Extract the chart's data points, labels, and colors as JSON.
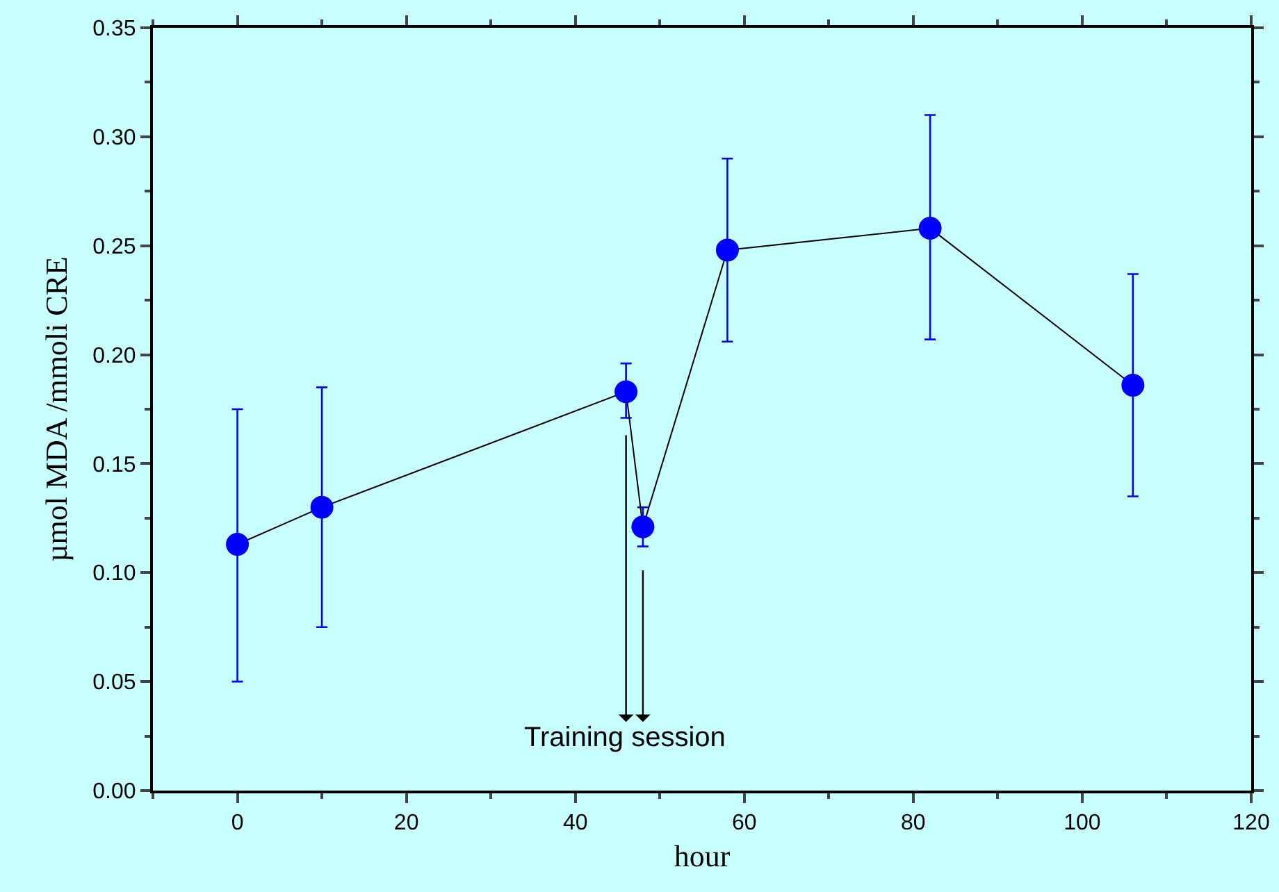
{
  "chart_data": {
    "type": "line",
    "xlabel": "hour",
    "ylabel": "µmol MDA /mmoli CRE",
    "x": [
      0,
      10,
      46,
      48,
      58,
      82,
      106
    ],
    "series": [
      {
        "color": "#0000ff",
        "values": [
          0.113,
          0.13,
          0.183,
          0.121,
          0.248,
          0.258,
          0.186
        ],
        "errors": [
          [
            0.05,
            0.175
          ],
          [
            0.075,
            0.185
          ],
          [
            0.171,
            0.196
          ],
          [
            0.112,
            0.13
          ],
          [
            0.206,
            0.29
          ],
          [
            0.207,
            0.31
          ],
          [
            0.135,
            0.237
          ]
        ]
      }
    ],
    "xlim": [
      -10,
      120
    ],
    "xticks": [
      0,
      20,
      40,
      60,
      80,
      100,
      120
    ],
    "ylim": [
      0,
      0.35
    ],
    "yticks": [
      {
        "value": 0,
        "label": "0.00"
      },
      {
        "value": 0.05,
        "label": "0.05"
      },
      {
        "value": 0.1,
        "label": "0.10"
      },
      {
        "value": 0.15,
        "label": "0.15"
      },
      {
        "value": 0.2,
        "label": "0.20"
      },
      {
        "value": 0.25,
        "label": "0.25"
      },
      {
        "value": 0.3,
        "label": "0.30"
      },
      {
        "value": 0.35,
        "label": "0.35"
      }
    ],
    "annotations": [
      "Training session"
    ],
    "marker": "circle"
  }
}
